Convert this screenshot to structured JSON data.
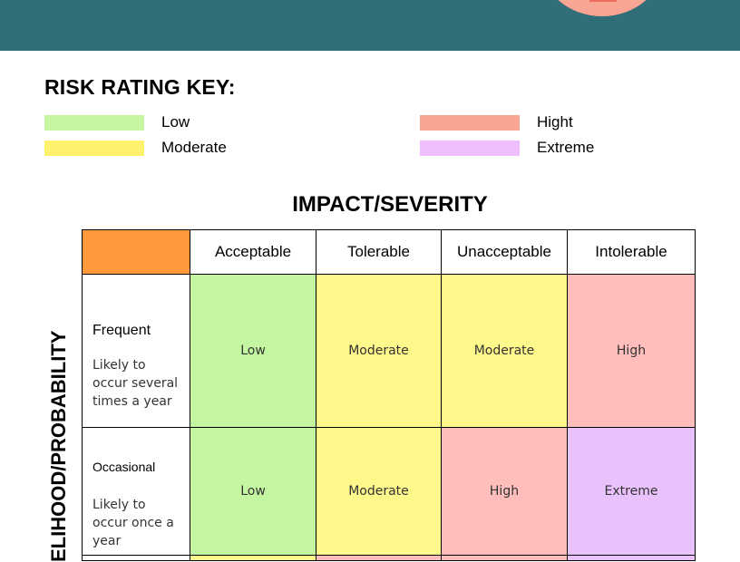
{
  "colors": {
    "header": "#316e78",
    "header_circle": "#f8a594",
    "corner": "#ff993c",
    "low": "#c4f5a0",
    "moderate": "#fff98c",
    "high": "#ffbdbb",
    "extreme": "#e9c2fd",
    "legend_low": "#c4f5a0",
    "legend_moderate": "#fff06e",
    "legend_high": "#f8a594",
    "legend_extreme": "#eebffc"
  },
  "key": {
    "title": "RISK RATING KEY:",
    "items": [
      {
        "label": "Low",
        "level": "low"
      },
      {
        "label": "Moderate",
        "level": "moderate"
      },
      {
        "label": "Hight",
        "level": "high"
      },
      {
        "label": "Extreme",
        "level": "extreme"
      }
    ]
  },
  "matrix": {
    "x_title": "IMPACT/SEVERITY",
    "y_title": "ELIHOOD/PROBABILITY",
    "columns": [
      "Acceptable",
      "Tolerable",
      "Unacceptable",
      "Intolerable"
    ],
    "rows": [
      {
        "name": "Frequent",
        "description": "Likely to occur several times a year",
        "cells": [
          {
            "label": "Low",
            "level": "low"
          },
          {
            "label": "Moderate",
            "level": "moderate"
          },
          {
            "label": "Moderate",
            "level": "moderate"
          },
          {
            "label": "High",
            "level": "high"
          }
        ]
      },
      {
        "name": "Occasional",
        "description": "Likely to occur once a year",
        "cells": [
          {
            "label": "Low",
            "level": "low"
          },
          {
            "label": "Moderate",
            "level": "moderate"
          },
          {
            "label": "High",
            "level": "high"
          },
          {
            "label": "Extreme",
            "level": "extreme"
          }
        ]
      },
      {
        "name": "",
        "description": "",
        "cells": [
          {
            "label": "",
            "level": "moderate"
          },
          {
            "label": "",
            "level": "high"
          },
          {
            "label": "",
            "level": "high"
          },
          {
            "label": "",
            "level": "extreme"
          }
        ]
      }
    ]
  }
}
